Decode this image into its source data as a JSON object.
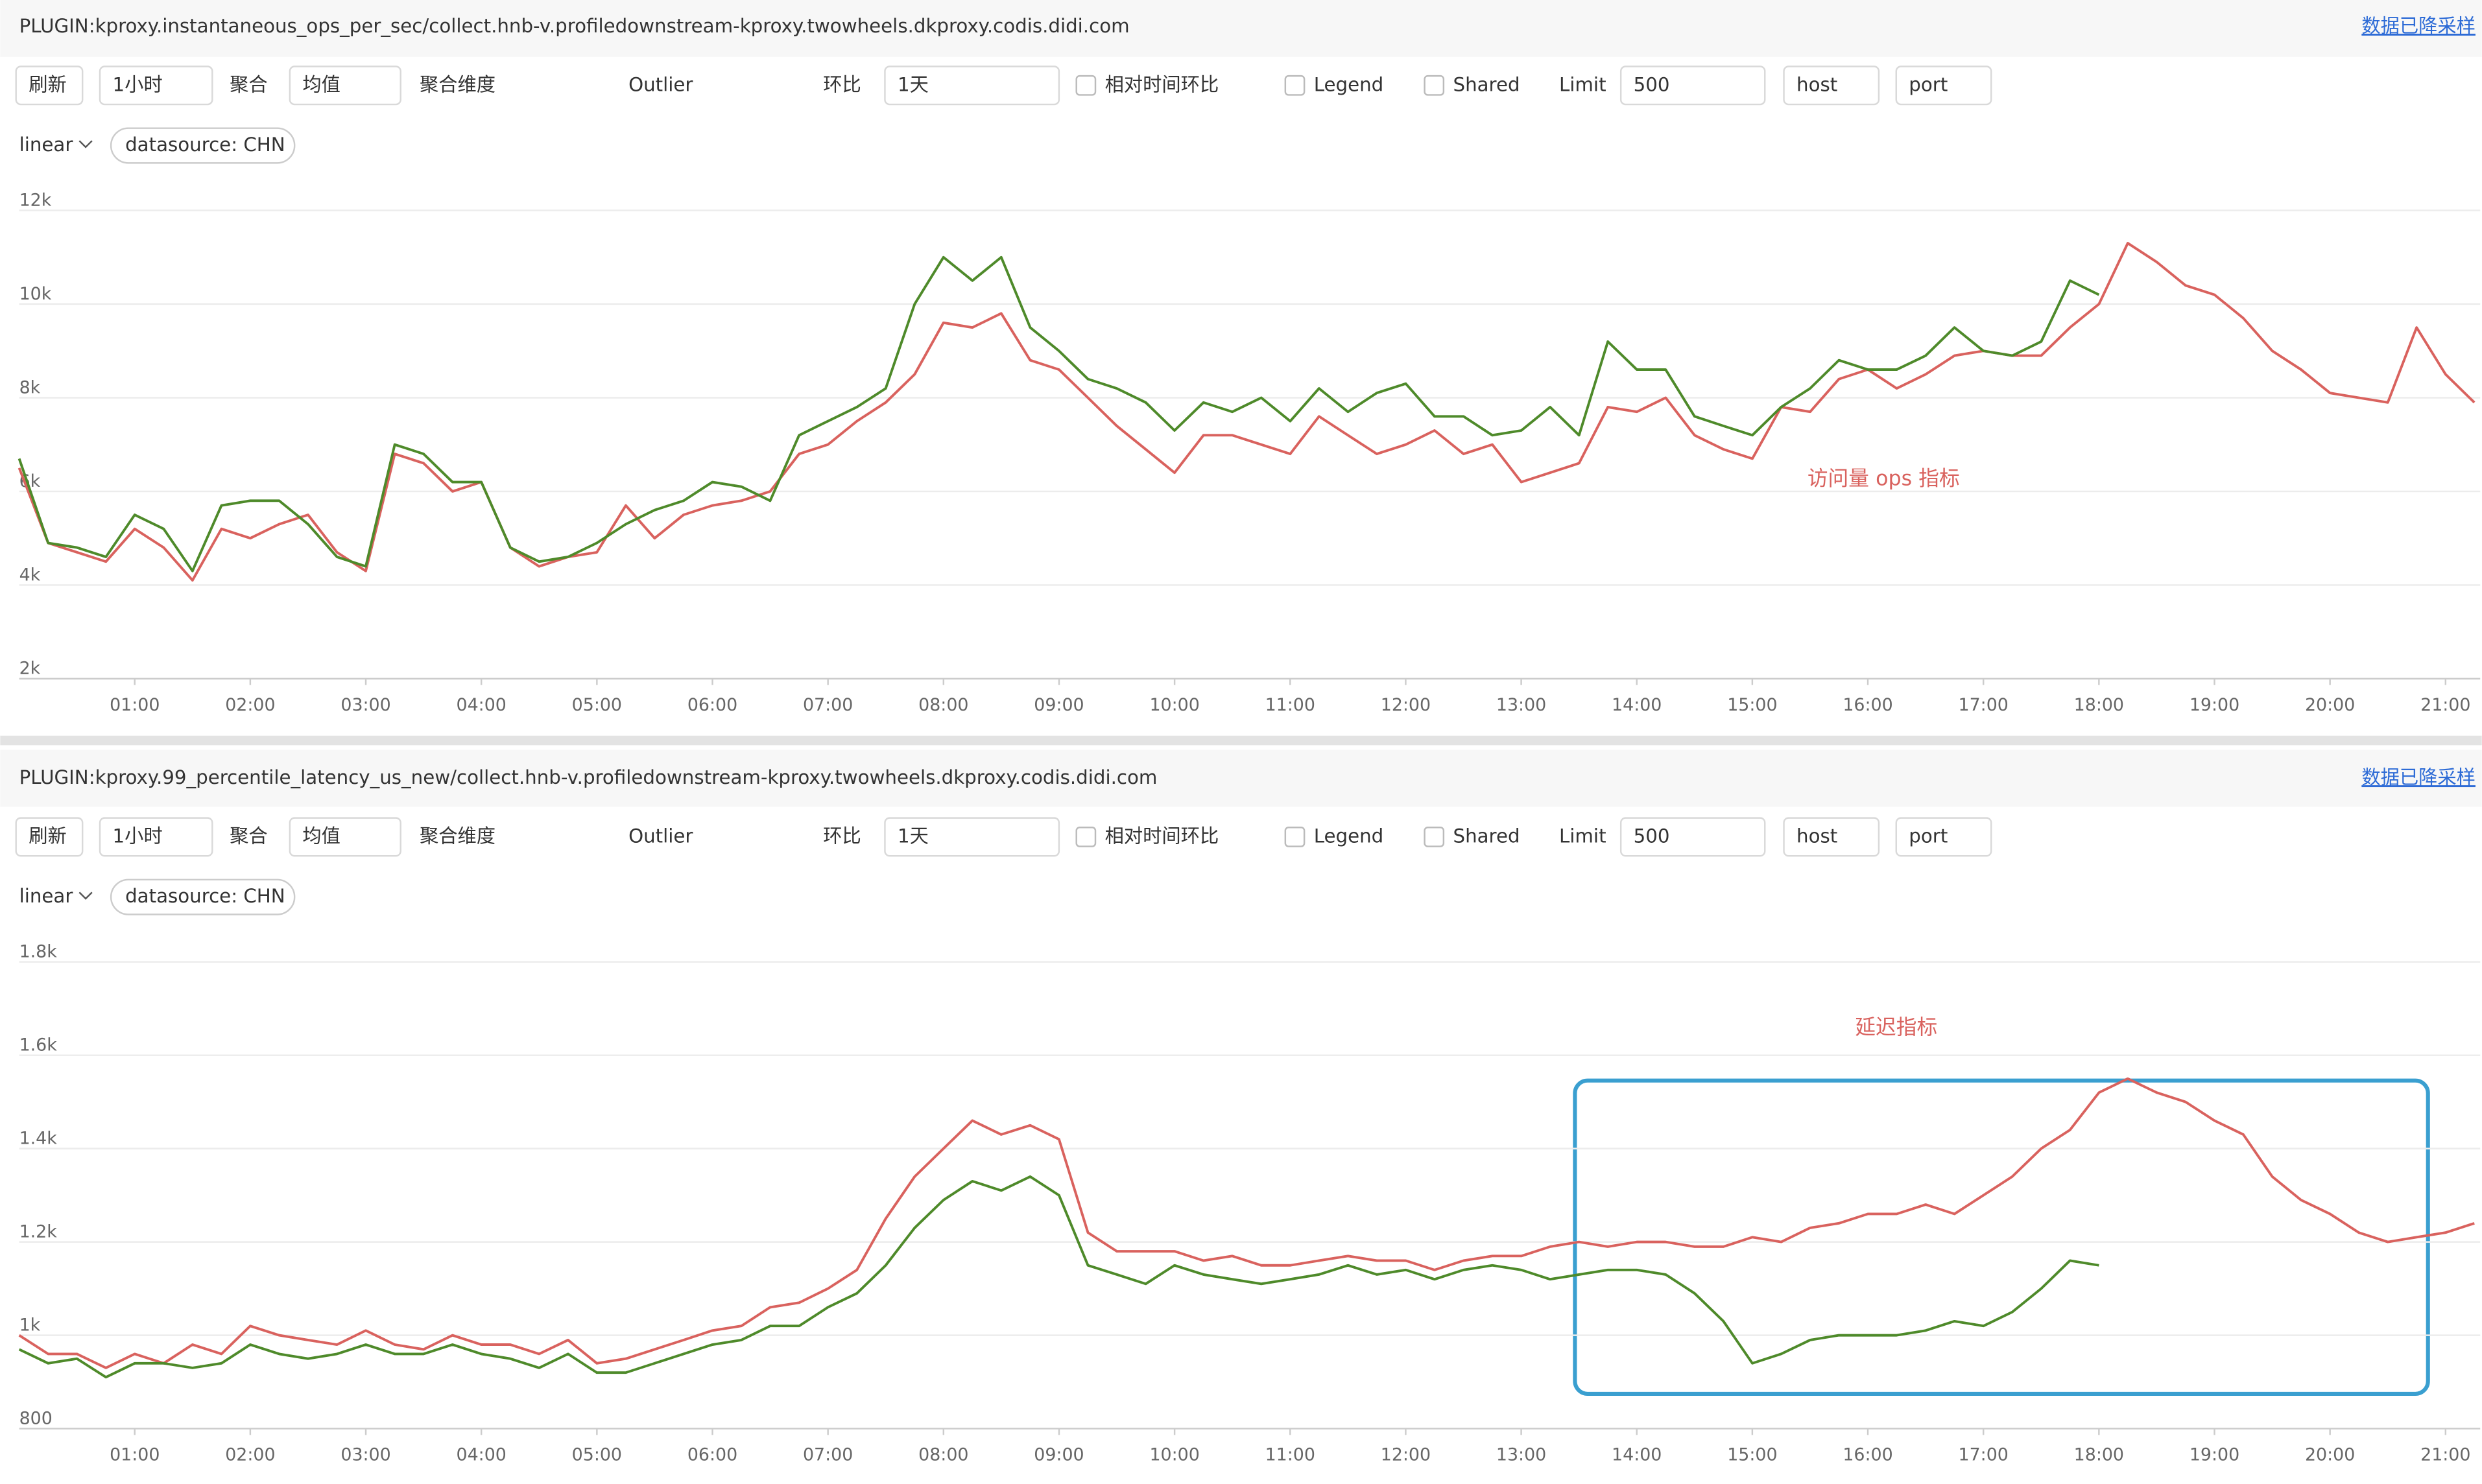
{
  "panels": [
    {
      "title": "PLUGIN:kproxy.instantaneous_ops_per_sec/collect.hnb-v.profiledownstream-kproxy.twowheels.dkproxy.codis.didi.com",
      "link": "数据已降采样",
      "toolbar": [
        "刷新",
        "1小时",
        "聚合",
        "均值",
        "聚合维度",
        "Outlier",
        "环比",
        "1天",
        "相对时间环比",
        "Legend",
        "Shared",
        "Limit",
        "500",
        "host",
        "port"
      ],
      "scale": "linear",
      "datasource": "datasource: CHN"
    },
    {
      "title": "PLUGIN:kproxy.99_percentile_latency_us_new/collect.hnb-v.profiledownstream-kproxy.twowheels.dkproxy.codis.didi.com",
      "link": "数据已降采样",
      "toolbar": [
        "刷新",
        "1小时",
        "聚合",
        "均值",
        "聚合维度",
        "Outlier",
        "环比",
        "1天",
        "相对时间环比",
        "Legend",
        "Shared",
        "Limit",
        "500",
        "host",
        "port"
      ],
      "scale": "linear",
      "datasource": "datasource: CHN"
    }
  ],
  "chart_data": [
    {
      "type": "line",
      "annotation": "访问量 ops 指标",
      "x": [
        0,
        0.25,
        0.5,
        0.75,
        1,
        1.25,
        1.5,
        1.75,
        2,
        2.25,
        2.5,
        2.75,
        3,
        3.25,
        3.5,
        3.75,
        4,
        4.25,
        4.5,
        4.75,
        5,
        5.25,
        5.5,
        5.75,
        6,
        6.25,
        6.5,
        6.75,
        7,
        7.25,
        7.5,
        7.75,
        8,
        8.25,
        8.5,
        8.75,
        9,
        9.25,
        9.5,
        9.75,
        10,
        10.25,
        10.5,
        10.75,
        11,
        11.25,
        11.5,
        11.75,
        12,
        12.25,
        12.5,
        12.75,
        13,
        13.25,
        13.5,
        13.75,
        14,
        14.25,
        14.5,
        14.75,
        15,
        15.25,
        15.5,
        15.75,
        16,
        16.25,
        16.5,
        16.75,
        17,
        17.25,
        17.5,
        17.75,
        18,
        18.25,
        18.5,
        18.75,
        19,
        19.25,
        19.5,
        19.75,
        20,
        20.25,
        20.5,
        20.75,
        21,
        21.25
      ],
      "series": [
        {
          "color": "#d9625e",
          "values": [
            6500,
            4900,
            4700,
            4500,
            5200,
            4800,
            4100,
            5200,
            5000,
            5300,
            5500,
            4700,
            4300,
            6800,
            6600,
            6000,
            6200,
            4800,
            4400,
            4600,
            4700,
            5700,
            5000,
            5500,
            5700,
            5800,
            6000,
            6800,
            7000,
            7500,
            7900,
            8500,
            9600,
            9500,
            9800,
            8800,
            8600,
            8000,
            7400,
            6900,
            6400,
            7200,
            7200,
            7000,
            6800,
            7600,
            7200,
            6800,
            7000,
            7300,
            6800,
            7000,
            6200,
            6400,
            6600,
            7800,
            7700,
            8000,
            7200,
            6900,
            6700,
            7800,
            7700,
            8400,
            8600,
            8200,
            8500,
            8900,
            9000,
            8900,
            8900,
            9500,
            10000,
            11300,
            10900,
            10400,
            10200,
            9700,
            9000,
            8600,
            8100,
            8000,
            7900,
            9500,
            8500,
            7900
          ]
        },
        {
          "color": "#4e8a2a",
          "values": [
            6700,
            4900,
            4800,
            4600,
            5500,
            5200,
            4300,
            5700,
            5800,
            5800,
            5300,
            4600,
            4400,
            7000,
            6800,
            6200,
            6200,
            4800,
            4500,
            4600,
            4900,
            5300,
            5600,
            5800,
            6200,
            6100,
            5800,
            7200,
            7500,
            7800,
            8200,
            10000,
            11000,
            10500,
            11000,
            9500,
            9000,
            8400,
            8200,
            7900,
            7300,
            7900,
            7700,
            8000,
            7500,
            8200,
            7700,
            8100,
            8300,
            7600,
            7600,
            7200,
            7300,
            7800,
            7200,
            9200,
            8600,
            8600,
            7600,
            7400,
            7200,
            7800,
            8200,
            8800,
            8600,
            8600,
            8900,
            9500,
            9000,
            8900,
            9200,
            10500,
            10200,
            null,
            null,
            null,
            null,
            null,
            null,
            null,
            null,
            null,
            null,
            null,
            null,
            null
          ]
        }
      ],
      "xlim": [
        0,
        21.3
      ],
      "xticks": [
        {
          "value": 1,
          "label": "01:00"
        },
        {
          "value": 2,
          "label": "02:00"
        },
        {
          "value": 3,
          "label": "03:00"
        },
        {
          "value": 4,
          "label": "04:00"
        },
        {
          "value": 5,
          "label": "05:00"
        },
        {
          "value": 6,
          "label": "06:00"
        },
        {
          "value": 7,
          "label": "07:00"
        },
        {
          "value": 8,
          "label": "08:00"
        },
        {
          "value": 9,
          "label": "09:00"
        },
        {
          "value": 10,
          "label": "10:00"
        },
        {
          "value": 11,
          "label": "11:00"
        },
        {
          "value": 12,
          "label": "12:00"
        },
        {
          "value": 13,
          "label": "13:00"
        },
        {
          "value": 14,
          "label": "14:00"
        },
        {
          "value": 15,
          "label": "15:00"
        },
        {
          "value": 16,
          "label": "16:00"
        },
        {
          "value": 17,
          "label": "17:00"
        },
        {
          "value": 18,
          "label": "18:00"
        },
        {
          "value": 19,
          "label": "19:00"
        },
        {
          "value": 20,
          "label": "20:00"
        },
        {
          "value": 21,
          "label": "21:00"
        }
      ],
      "ylim": [
        2000,
        12000
      ],
      "yticks": [
        {
          "value": 2000,
          "label": "2k"
        },
        {
          "value": 4000,
          "label": "4k"
        },
        {
          "value": 6000,
          "label": "6k"
        },
        {
          "value": 8000,
          "label": "8k"
        },
        {
          "value": 10000,
          "label": "10k"
        },
        {
          "value": 12000,
          "label": "12k"
        }
      ],
      "grid": true
    },
    {
      "type": "line",
      "annotation": "延迟指标",
      "x": [
        0,
        0.25,
        0.5,
        0.75,
        1,
        1.25,
        1.5,
        1.75,
        2,
        2.25,
        2.5,
        2.75,
        3,
        3.25,
        3.5,
        3.75,
        4,
        4.25,
        4.5,
        4.75,
        5,
        5.25,
        5.5,
        5.75,
        6,
        6.25,
        6.5,
        6.75,
        7,
        7.25,
        7.5,
        7.75,
        8,
        8.25,
        8.5,
        8.75,
        9,
        9.25,
        9.5,
        9.75,
        10,
        10.25,
        10.5,
        10.75,
        11,
        11.25,
        11.5,
        11.75,
        12,
        12.25,
        12.5,
        12.75,
        13,
        13.25,
        13.5,
        13.75,
        14,
        14.25,
        14.5,
        14.75,
        15,
        15.25,
        15.5,
        15.75,
        16,
        16.25,
        16.5,
        16.75,
        17,
        17.25,
        17.5,
        17.75,
        18,
        18.25,
        18.5,
        18.75,
        19,
        19.25,
        19.5,
        19.75,
        20,
        20.25,
        20.5,
        20.75,
        21,
        21.25
      ],
      "series": [
        {
          "color": "#d9625e",
          "values": [
            1000,
            960,
            960,
            930,
            960,
            940,
            980,
            960,
            1020,
            1000,
            990,
            980,
            1010,
            980,
            970,
            1000,
            980,
            980,
            960,
            990,
            940,
            950,
            970,
            990,
            1010,
            1020,
            1060,
            1070,
            1100,
            1140,
            1250,
            1340,
            1400,
            1460,
            1430,
            1450,
            1420,
            1220,
            1180,
            1180,
            1180,
            1160,
            1170,
            1150,
            1150,
            1160,
            1170,
            1160,
            1160,
            1140,
            1160,
            1170,
            1170,
            1190,
            1200,
            1190,
            1200,
            1200,
            1190,
            1190,
            1210,
            1200,
            1230,
            1240,
            1260,
            1260,
            1280,
            1260,
            1300,
            1340,
            1400,
            1440,
            1520,
            1550,
            1520,
            1500,
            1460,
            1430,
            1340,
            1290,
            1260,
            1220,
            1200,
            1210,
            1220,
            1240
          ]
        },
        {
          "color": "#4e8a2a",
          "values": [
            970,
            940,
            950,
            910,
            940,
            940,
            930,
            940,
            980,
            960,
            950,
            960,
            980,
            960,
            960,
            980,
            960,
            950,
            930,
            960,
            920,
            920,
            940,
            960,
            980,
            990,
            1020,
            1020,
            1060,
            1090,
            1150,
            1230,
            1290,
            1330,
            1310,
            1340,
            1300,
            1150,
            1130,
            1110,
            1150,
            1130,
            1120,
            1110,
            1120,
            1130,
            1150,
            1130,
            1140,
            1120,
            1140,
            1150,
            1140,
            1120,
            1130,
            1140,
            1140,
            1130,
            1090,
            1030,
            940,
            960,
            990,
            1000,
            1000,
            1000,
            1010,
            1030,
            1020,
            1050,
            1100,
            1160,
            1150,
            null,
            null,
            null,
            null,
            null,
            null,
            null,
            null,
            null,
            null,
            null,
            null,
            null
          ]
        }
      ],
      "xlim": [
        0,
        21.3
      ],
      "xticks": [
        {
          "value": 1,
          "label": "01:00"
        },
        {
          "value": 2,
          "label": "02:00"
        },
        {
          "value": 3,
          "label": "03:00"
        },
        {
          "value": 4,
          "label": "04:00"
        },
        {
          "value": 5,
          "label": "05:00"
        },
        {
          "value": 6,
          "label": "06:00"
        },
        {
          "value": 7,
          "label": "07:00"
        },
        {
          "value": 8,
          "label": "08:00"
        },
        {
          "value": 9,
          "label": "09:00"
        },
        {
          "value": 10,
          "label": "10:00"
        },
        {
          "value": 11,
          "label": "11:00"
        },
        {
          "value": 12,
          "label": "12:00"
        },
        {
          "value": 13,
          "label": "13:00"
        },
        {
          "value": 14,
          "label": "14:00"
        },
        {
          "value": 15,
          "label": "15:00"
        },
        {
          "value": 16,
          "label": "16:00"
        },
        {
          "value": 17,
          "label": "17:00"
        },
        {
          "value": 18,
          "label": "18:00"
        },
        {
          "value": 19,
          "label": "19:00"
        },
        {
          "value": 20,
          "label": "20:00"
        },
        {
          "value": 21,
          "label": "21:00"
        }
      ],
      "ylim": [
        800,
        1800
      ],
      "yticks": [
        800,
        {
          "value": 1000,
          "label": "1k"
        },
        {
          "value": 1200,
          "label": "1.2k"
        },
        {
          "value": 1400,
          "label": "1.4k"
        },
        {
          "value": 1600,
          "label": "1.6k"
        },
        {
          "value": 1800,
          "label": "1.8k"
        }
      ],
      "grid": true
    }
  ]
}
